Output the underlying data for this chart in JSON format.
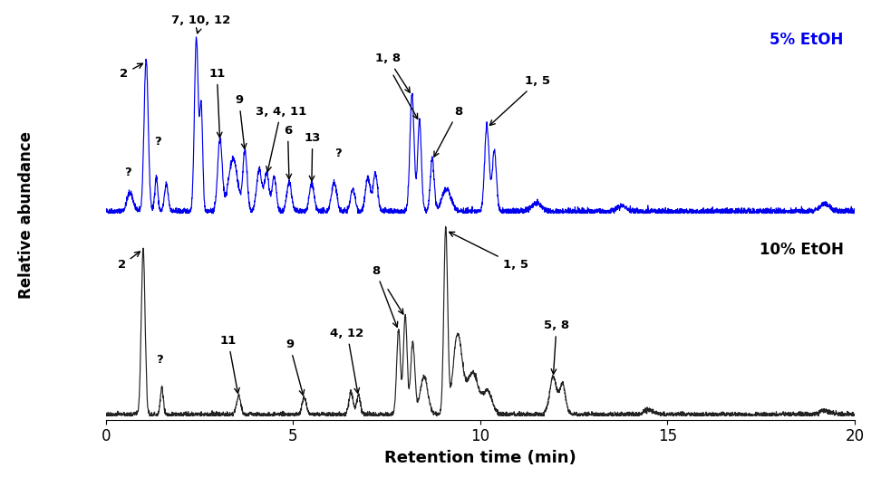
{
  "title": "",
  "xlabel": "Retention time (min)",
  "ylabel": "Relative abundance",
  "xlim": [
    0,
    20
  ],
  "line_color_5pct": "#0000EE",
  "line_color_10pct": "#222222",
  "label_5pct": "5% EtOH",
  "label_10pct": "10% EtOH",
  "label_5pct_color": "#0000EE",
  "label_10pct_color": "#000000",
  "background_color": "#ffffff",
  "xticks": [
    0,
    5,
    10,
    15,
    20
  ]
}
